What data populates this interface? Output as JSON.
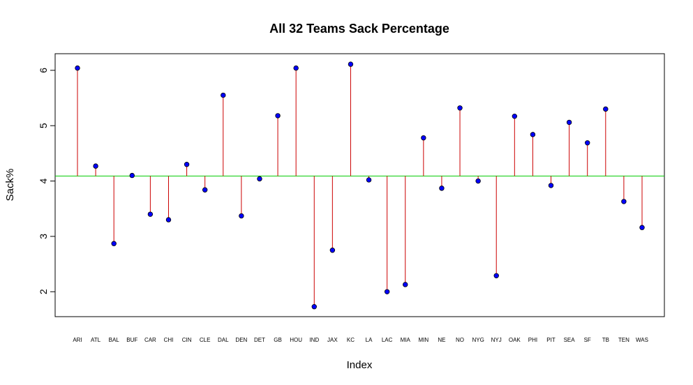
{
  "chart_data": {
    "type": "scatter",
    "title": "All 32 Teams Sack Percentage",
    "xlabel": "Index",
    "ylabel": "Sack%",
    "categories": [
      "ARI",
      "ATL",
      "BAL",
      "BUF",
      "CAR",
      "CHI",
      "CIN",
      "CLE",
      "DAL",
      "DEN",
      "DET",
      "GB",
      "HOU",
      "IND",
      "JAX",
      "KC",
      "LA",
      "LAC",
      "MIA",
      "MIN",
      "NE",
      "NO",
      "NYG",
      "NYJ",
      "OAK",
      "PHI",
      "PIT",
      "SEA",
      "SF",
      "TB",
      "TEN",
      "WAS"
    ],
    "series": [
      {
        "values": [
          6.04,
          4.27,
          2.87,
          4.1,
          3.4,
          3.3,
          4.3,
          3.84,
          5.55,
          3.37,
          4.04,
          5.18,
          6.04,
          1.73,
          2.75,
          6.11,
          4.02,
          2.0,
          2.13,
          4.78,
          3.87,
          5.32,
          4.0,
          2.29,
          5.17,
          4.84,
          3.92,
          5.06,
          4.69,
          5.3,
          3.63,
          3.16
        ]
      }
    ],
    "reference_line": {
      "y": 4.09,
      "color": "#00cc00"
    },
    "ylim": [
      1.55,
      6.3
    ],
    "yticks": [
      2,
      3,
      4,
      5,
      6
    ],
    "grid": false,
    "colors": {
      "stem": "#cc0000",
      "point_fill": "#0000ff",
      "point_edge": "#000000",
      "frame": "#000000"
    }
  }
}
